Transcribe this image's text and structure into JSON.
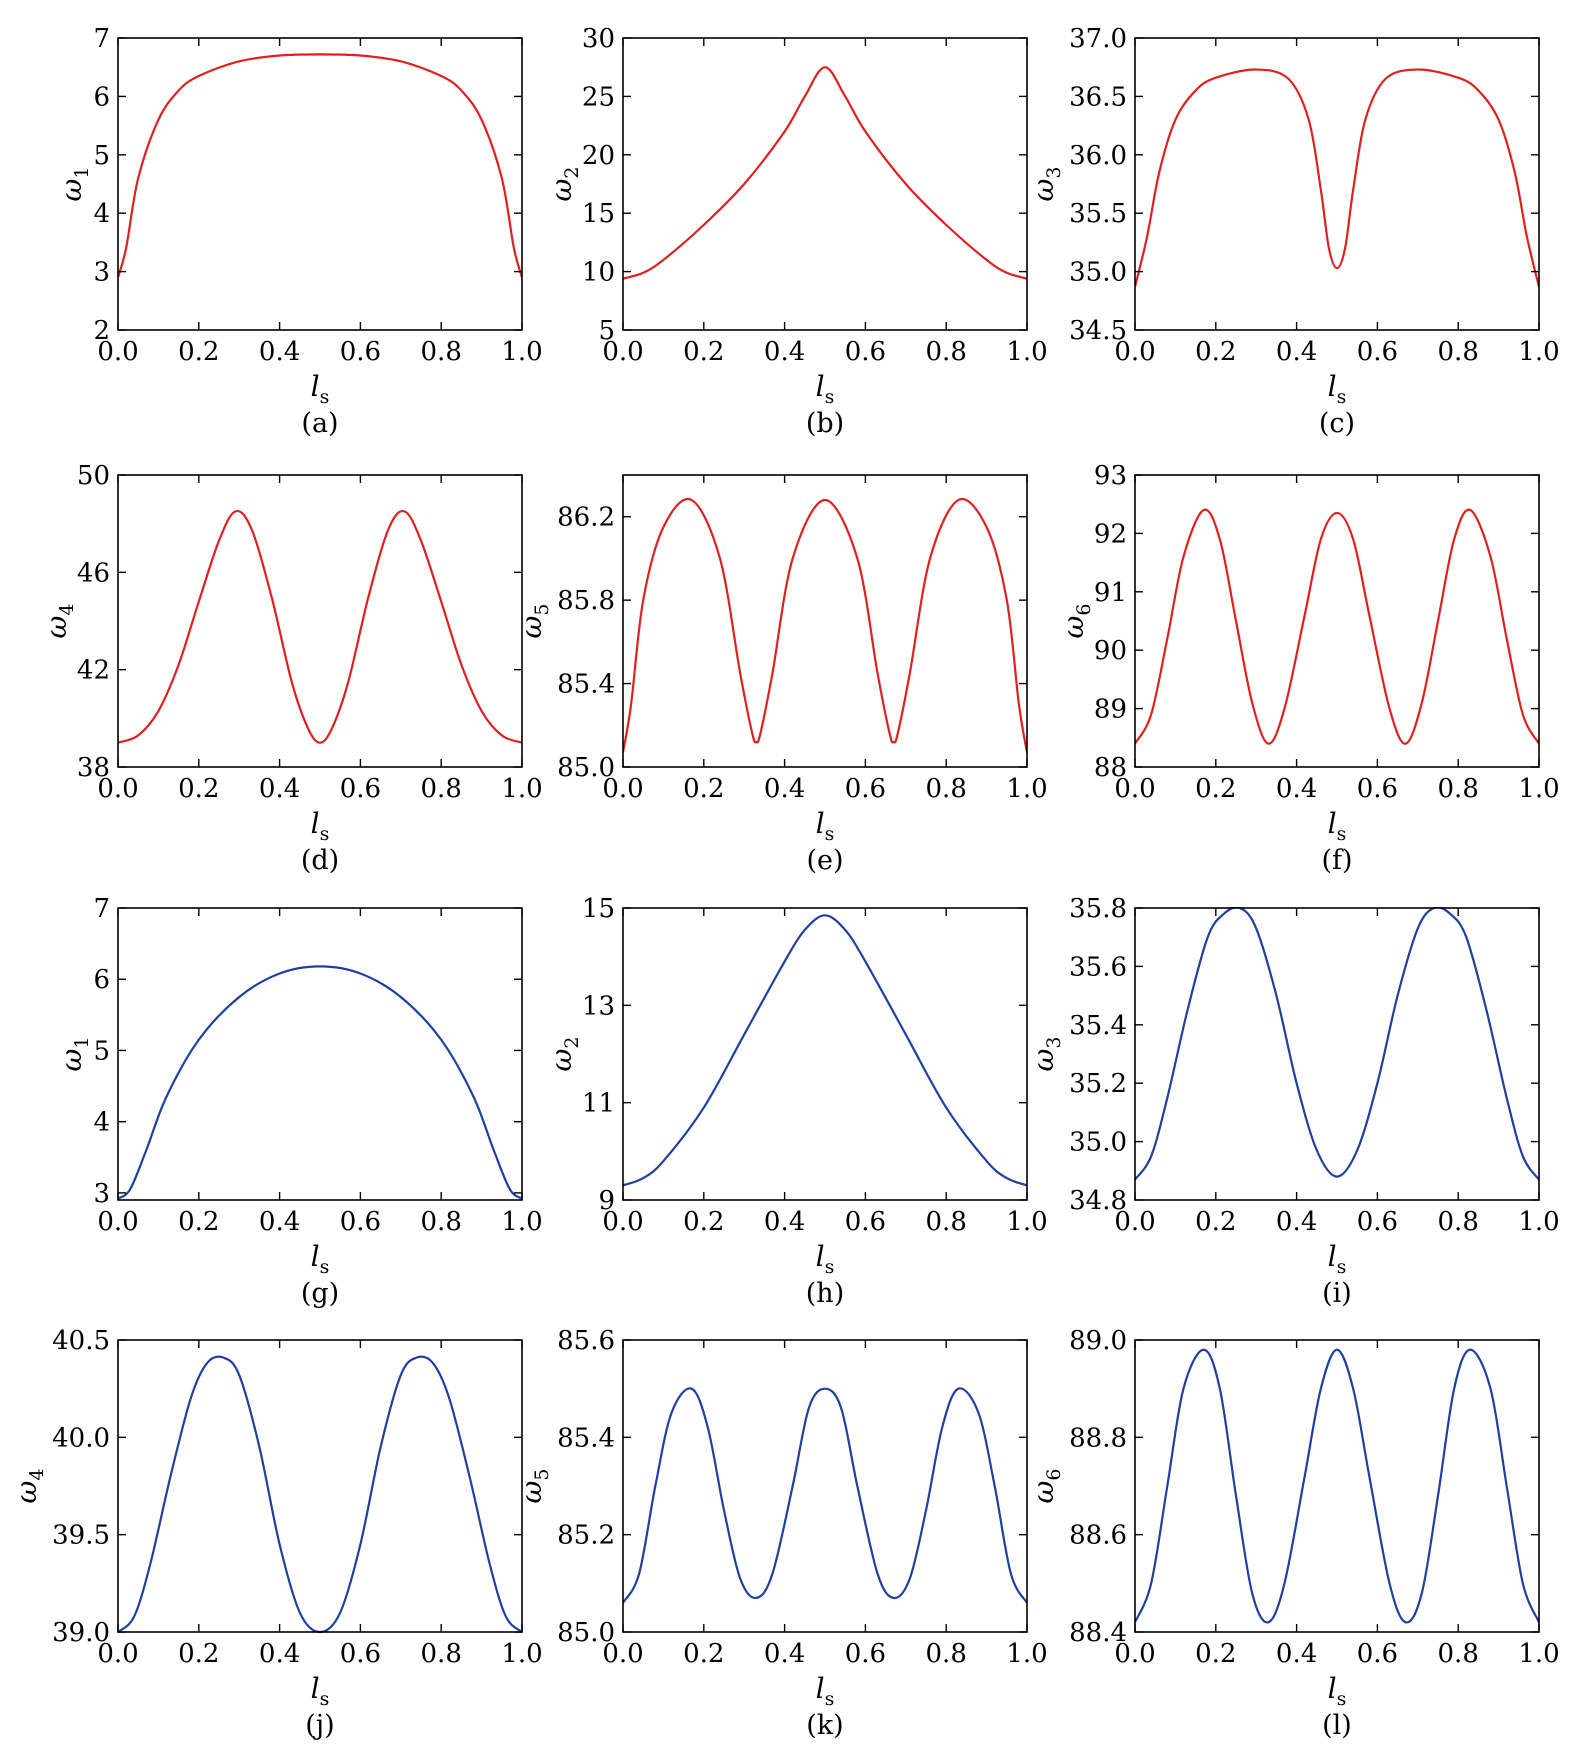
{
  "figure": {
    "xlabel_main": "l",
    "xlabel_sub": "s",
    "ylabel_main": "ω",
    "colors": {
      "red": "#e02020",
      "blue": "#2040a0",
      "axis": "#000000"
    }
  },
  "chart_data": [
    {
      "type": "line",
      "caption": "(a)",
      "ylabel_sub": "1",
      "color": "red",
      "xlim": [
        0,
        1
      ],
      "ylim": [
        2,
        7
      ],
      "xticks": [
        "0.0",
        "0.2",
        "0.4",
        "0.6",
        "0.8",
        "1.0"
      ],
      "xtick_values": [
        0,
        0.2,
        0.4,
        0.6,
        0.8,
        1.0
      ],
      "yticks": [
        "2",
        "3",
        "4",
        "5",
        "6",
        "7"
      ],
      "ytick_values": [
        2,
        3,
        4,
        5,
        6,
        7
      ],
      "series": [
        {
          "x": [
            0,
            0.02,
            0.05,
            0.1,
            0.15,
            0.2,
            0.3,
            0.4,
            0.5,
            0.6,
            0.7,
            0.8,
            0.85,
            0.9,
            0.95,
            0.98,
            1.0
          ],
          "y": [
            2.9,
            3.4,
            4.6,
            5.6,
            6.1,
            6.35,
            6.6,
            6.7,
            6.72,
            6.7,
            6.6,
            6.35,
            6.1,
            5.6,
            4.6,
            3.4,
            2.9
          ]
        }
      ]
    },
    {
      "type": "line",
      "caption": "(b)",
      "ylabel_sub": "2",
      "color": "red",
      "xlim": [
        0,
        1
      ],
      "ylim": [
        5,
        30
      ],
      "xticks": [
        "0.0",
        "0.2",
        "0.4",
        "0.6",
        "0.8",
        "1.0"
      ],
      "xtick_values": [
        0,
        0.2,
        0.4,
        0.6,
        0.8,
        1.0
      ],
      "yticks": [
        "5",
        "10",
        "15",
        "20",
        "25",
        "30"
      ],
      "ytick_values": [
        5,
        10,
        15,
        20,
        25,
        30
      ],
      "series": [
        {
          "x": [
            0,
            0.05,
            0.1,
            0.2,
            0.3,
            0.4,
            0.45,
            0.5,
            0.55,
            0.6,
            0.7,
            0.8,
            0.9,
            0.95,
            1.0
          ],
          "y": [
            9.4,
            9.9,
            11.0,
            14.0,
            17.5,
            22.0,
            25.0,
            27.5,
            25.0,
            22.0,
            17.5,
            14.0,
            11.0,
            9.9,
            9.4
          ]
        }
      ]
    },
    {
      "type": "line",
      "caption": "(c)",
      "ylabel_sub": "3",
      "color": "red",
      "xlim": [
        0,
        1
      ],
      "ylim": [
        34.5,
        37.0
      ],
      "xticks": [
        "0.0",
        "0.2",
        "0.4",
        "0.6",
        "0.8",
        "1.0"
      ],
      "xtick_values": [
        0,
        0.2,
        0.4,
        0.6,
        0.8,
        1.0
      ],
      "yticks": [
        "34.5",
        "35.0",
        "35.5",
        "36.0",
        "36.5",
        "37.0"
      ],
      "ytick_values": [
        34.5,
        35.0,
        35.5,
        36.0,
        36.5,
        37.0
      ],
      "series": [
        {
          "x": [
            0,
            0.03,
            0.06,
            0.1,
            0.15,
            0.2,
            0.3,
            0.38,
            0.43,
            0.46,
            0.48,
            0.5,
            0.52,
            0.54,
            0.57,
            0.62,
            0.7,
            0.8,
            0.85,
            0.9,
            0.94,
            0.97,
            1.0
          ],
          "y": [
            34.87,
            35.3,
            35.85,
            36.3,
            36.55,
            36.66,
            36.73,
            36.65,
            36.3,
            35.7,
            35.2,
            35.03,
            35.2,
            35.7,
            36.3,
            36.65,
            36.73,
            36.66,
            36.55,
            36.3,
            35.85,
            35.3,
            34.87
          ]
        }
      ]
    },
    {
      "type": "line",
      "caption": "(d)",
      "ylabel_sub": "4",
      "color": "red",
      "xlim": [
        0,
        1
      ],
      "ylim": [
        38,
        50
      ],
      "xticks": [
        "0.0",
        "0.2",
        "0.4",
        "0.6",
        "0.8",
        "1.0"
      ],
      "xtick_values": [
        0,
        0.2,
        0.4,
        0.6,
        0.8,
        1.0
      ],
      "yticks": [
        "38",
        "42",
        "46",
        "50"
      ],
      "ytick_values": [
        38,
        42,
        46,
        50
      ],
      "series": [
        {
          "x": [
            0,
            0.05,
            0.1,
            0.15,
            0.2,
            0.25,
            0.29,
            0.33,
            0.38,
            0.43,
            0.47,
            0.5,
            0.53,
            0.57,
            0.62,
            0.67,
            0.71,
            0.75,
            0.8,
            0.85,
            0.9,
            0.95,
            1.0
          ],
          "y": [
            39.0,
            39.3,
            40.3,
            42.2,
            44.8,
            47.3,
            48.5,
            47.8,
            45.0,
            41.5,
            39.6,
            39.0,
            39.6,
            41.5,
            45.0,
            47.8,
            48.5,
            47.3,
            44.8,
            42.2,
            40.3,
            39.3,
            39.0
          ]
        }
      ]
    },
    {
      "type": "line",
      "caption": "(e)",
      "ylabel_sub": "5",
      "color": "red",
      "xlim": [
        0,
        1
      ],
      "ylim": [
        85.0,
        86.4
      ],
      "xticks": [
        "0.0",
        "0.2",
        "0.4",
        "0.6",
        "0.8",
        "1.0"
      ],
      "xtick_values": [
        0,
        0.2,
        0.4,
        0.6,
        0.8,
        1.0
      ],
      "yticks": [
        "85.0",
        "85.4",
        "85.8",
        "86.2"
      ],
      "ytick_values": [
        85.0,
        85.4,
        85.8,
        86.2
      ],
      "series": [
        {
          "x": [
            0,
            0.02,
            0.05,
            0.1,
            0.17,
            0.24,
            0.29,
            0.32,
            0.33,
            0.34,
            0.37,
            0.42,
            0.5,
            0.58,
            0.63,
            0.66,
            0.67,
            0.68,
            0.71,
            0.76,
            0.83,
            0.9,
            0.95,
            0.98,
            1.0
          ],
          "y": [
            85.07,
            85.3,
            85.8,
            86.15,
            86.28,
            86.0,
            85.45,
            85.16,
            85.12,
            85.16,
            85.45,
            86.0,
            86.28,
            86.0,
            85.45,
            85.16,
            85.12,
            85.16,
            85.45,
            86.0,
            86.28,
            86.15,
            85.8,
            85.3,
            85.07
          ]
        }
      ]
    },
    {
      "type": "line",
      "caption": "(f)",
      "ylabel_sub": "6",
      "color": "red",
      "xlim": [
        0,
        1
      ],
      "ylim": [
        88,
        93
      ],
      "xticks": [
        "0.0",
        "0.2",
        "0.4",
        "0.6",
        "0.8",
        "1.0"
      ],
      "xtick_values": [
        0,
        0.2,
        0.4,
        0.6,
        0.8,
        1.0
      ],
      "yticks": [
        "88",
        "89",
        "90",
        "91",
        "92",
        "93"
      ],
      "ytick_values": [
        88,
        89,
        90,
        91,
        92,
        93
      ],
      "series": [
        {
          "x": [
            0,
            0.04,
            0.08,
            0.12,
            0.17,
            0.21,
            0.25,
            0.29,
            0.33,
            0.37,
            0.42,
            0.46,
            0.5,
            0.54,
            0.58,
            0.63,
            0.67,
            0.71,
            0.75,
            0.79,
            0.83,
            0.88,
            0.92,
            0.96,
            1.0
          ],
          "y": [
            88.4,
            88.9,
            90.2,
            91.6,
            92.4,
            91.9,
            90.5,
            89.1,
            88.4,
            89.0,
            90.6,
            91.9,
            92.35,
            91.9,
            90.6,
            89.0,
            88.4,
            89.1,
            90.5,
            91.9,
            92.4,
            91.6,
            90.2,
            88.9,
            88.4
          ]
        }
      ]
    },
    {
      "type": "line",
      "caption": "(g)",
      "ylabel_sub": "1",
      "color": "blue",
      "xlim": [
        0,
        1
      ],
      "ylim": [
        2.9,
        7
      ],
      "xticks": [
        "0.0",
        "0.2",
        "0.4",
        "0.6",
        "0.8",
        "1.0"
      ],
      "xtick_values": [
        0,
        0.2,
        0.4,
        0.6,
        0.8,
        1.0
      ],
      "yticks": [
        "3",
        "4",
        "5",
        "6",
        "7"
      ],
      "ytick_values": [
        3,
        4,
        5,
        6,
        7
      ],
      "series": [
        {
          "x": [
            0,
            0.03,
            0.07,
            0.12,
            0.2,
            0.3,
            0.4,
            0.5,
            0.6,
            0.7,
            0.8,
            0.88,
            0.93,
            0.97,
            1.0
          ],
          "y": [
            2.92,
            3.05,
            3.6,
            4.35,
            5.15,
            5.75,
            6.08,
            6.18,
            6.08,
            5.75,
            5.15,
            4.35,
            3.6,
            3.05,
            2.92
          ]
        }
      ]
    },
    {
      "type": "line",
      "caption": "(h)",
      "ylabel_sub": "2",
      "color": "blue",
      "xlim": [
        0,
        1
      ],
      "ylim": [
        9,
        15
      ],
      "xticks": [
        "0.0",
        "0.2",
        "0.4",
        "0.6",
        "0.8",
        "1.0"
      ],
      "xtick_values": [
        0,
        0.2,
        0.4,
        0.6,
        0.8,
        1.0
      ],
      "yticks": [
        "9",
        "11",
        "13",
        "15"
      ],
      "ytick_values": [
        9,
        11,
        13,
        15
      ],
      "series": [
        {
          "x": [
            0,
            0.05,
            0.1,
            0.2,
            0.3,
            0.4,
            0.45,
            0.5,
            0.55,
            0.6,
            0.7,
            0.8,
            0.9,
            0.95,
            1.0
          ],
          "y": [
            9.3,
            9.45,
            9.8,
            10.9,
            12.4,
            13.9,
            14.55,
            14.85,
            14.55,
            13.9,
            12.4,
            10.9,
            9.8,
            9.45,
            9.3
          ]
        }
      ]
    },
    {
      "type": "line",
      "caption": "(i)",
      "ylabel_sub": "3",
      "color": "blue",
      "xlim": [
        0,
        1
      ],
      "ylim": [
        34.8,
        35.8
      ],
      "xticks": [
        "0.0",
        "0.2",
        "0.4",
        "0.6",
        "0.8",
        "1.0"
      ],
      "xtick_values": [
        0,
        0.2,
        0.4,
        0.6,
        0.8,
        1.0
      ],
      "yticks": [
        "34.8",
        "35.0",
        "35.2",
        "35.4",
        "35.6",
        "35.8"
      ],
      "ytick_values": [
        34.8,
        35.0,
        35.2,
        35.4,
        35.6,
        35.8
      ],
      "series": [
        {
          "x": [
            0,
            0.04,
            0.08,
            0.13,
            0.18,
            0.22,
            0.26,
            0.3,
            0.35,
            0.4,
            0.45,
            0.5,
            0.55,
            0.6,
            0.65,
            0.7,
            0.74,
            0.78,
            0.82,
            0.87,
            0.92,
            0.96,
            1.0
          ],
          "y": [
            34.87,
            34.95,
            35.15,
            35.45,
            35.7,
            35.78,
            35.8,
            35.73,
            35.5,
            35.2,
            34.97,
            34.88,
            34.97,
            35.2,
            35.5,
            35.73,
            35.8,
            35.78,
            35.7,
            35.45,
            35.15,
            34.95,
            34.87
          ]
        }
      ]
    },
    {
      "type": "line",
      "caption": "(j)",
      "ylabel_sub": "4",
      "color": "blue",
      "xlim": [
        0,
        1
      ],
      "ylim": [
        39.0,
        40.5
      ],
      "xticks": [
        "0.0",
        "0.2",
        "0.4",
        "0.6",
        "0.8",
        "1.0"
      ],
      "xtick_values": [
        0,
        0.2,
        0.4,
        0.6,
        0.8,
        1.0
      ],
      "yticks": [
        "39.0",
        "39.5",
        "40.0",
        "40.5"
      ],
      "ytick_values": [
        39.0,
        39.5,
        40.0,
        40.5
      ],
      "series": [
        {
          "x": [
            0,
            0.04,
            0.08,
            0.13,
            0.18,
            0.22,
            0.26,
            0.3,
            0.35,
            0.4,
            0.45,
            0.5,
            0.55,
            0.6,
            0.65,
            0.7,
            0.74,
            0.78,
            0.82,
            0.87,
            0.92,
            0.96,
            1.0
          ],
          "y": [
            39.0,
            39.08,
            39.35,
            39.8,
            40.2,
            40.38,
            40.41,
            40.32,
            39.95,
            39.45,
            39.1,
            39.0,
            39.1,
            39.45,
            39.95,
            40.32,
            40.41,
            40.38,
            40.2,
            39.8,
            39.35,
            39.08,
            39.0
          ]
        }
      ]
    },
    {
      "type": "line",
      "caption": "(k)",
      "ylabel_sub": "5",
      "color": "blue",
      "xlim": [
        0,
        1
      ],
      "ylim": [
        85.0,
        85.6
      ],
      "xticks": [
        "0.0",
        "0.2",
        "0.4",
        "0.6",
        "0.8",
        "1.0"
      ],
      "xtick_values": [
        0,
        0.2,
        0.4,
        0.6,
        0.8,
        1.0
      ],
      "yticks": [
        "85.0",
        "85.2",
        "85.4",
        "85.6"
      ],
      "ytick_values": [
        85.0,
        85.2,
        85.4,
        85.6
      ],
      "series": [
        {
          "x": [
            0,
            0.04,
            0.08,
            0.12,
            0.17,
            0.21,
            0.25,
            0.29,
            0.33,
            0.37,
            0.42,
            0.46,
            0.5,
            0.54,
            0.58,
            0.63,
            0.67,
            0.71,
            0.75,
            0.79,
            0.83,
            0.88,
            0.92,
            0.96,
            1.0
          ],
          "y": [
            85.06,
            85.12,
            85.3,
            85.45,
            85.5,
            85.42,
            85.25,
            85.11,
            85.07,
            85.12,
            85.3,
            85.46,
            85.5,
            85.46,
            85.3,
            85.12,
            85.07,
            85.11,
            85.25,
            85.42,
            85.5,
            85.45,
            85.3,
            85.12,
            85.06
          ]
        }
      ]
    },
    {
      "type": "line",
      "caption": "(l)",
      "ylabel_sub": "6",
      "color": "blue",
      "xlim": [
        0,
        1
      ],
      "ylim": [
        88.4,
        89.0
      ],
      "xticks": [
        "0.0",
        "0.2",
        "0.4",
        "0.6",
        "0.8",
        "1.0"
      ],
      "xtick_values": [
        0,
        0.2,
        0.4,
        0.6,
        0.8,
        1.0
      ],
      "yticks": [
        "88.4",
        "88.6",
        "88.8",
        "89.0"
      ],
      "ytick_values": [
        88.4,
        88.6,
        88.8,
        89.0
      ],
      "series": [
        {
          "x": [
            0,
            0.04,
            0.08,
            0.12,
            0.17,
            0.21,
            0.25,
            0.29,
            0.33,
            0.37,
            0.42,
            0.46,
            0.5,
            0.54,
            0.58,
            0.63,
            0.67,
            0.71,
            0.75,
            0.79,
            0.83,
            0.88,
            0.92,
            0.96,
            1.0
          ],
          "y": [
            88.42,
            88.5,
            88.7,
            88.9,
            88.98,
            88.9,
            88.68,
            88.48,
            88.42,
            88.5,
            88.72,
            88.9,
            88.98,
            88.9,
            88.72,
            88.5,
            88.42,
            88.48,
            88.68,
            88.9,
            88.98,
            88.9,
            88.7,
            88.5,
            88.42
          ]
        }
      ]
    }
  ]
}
